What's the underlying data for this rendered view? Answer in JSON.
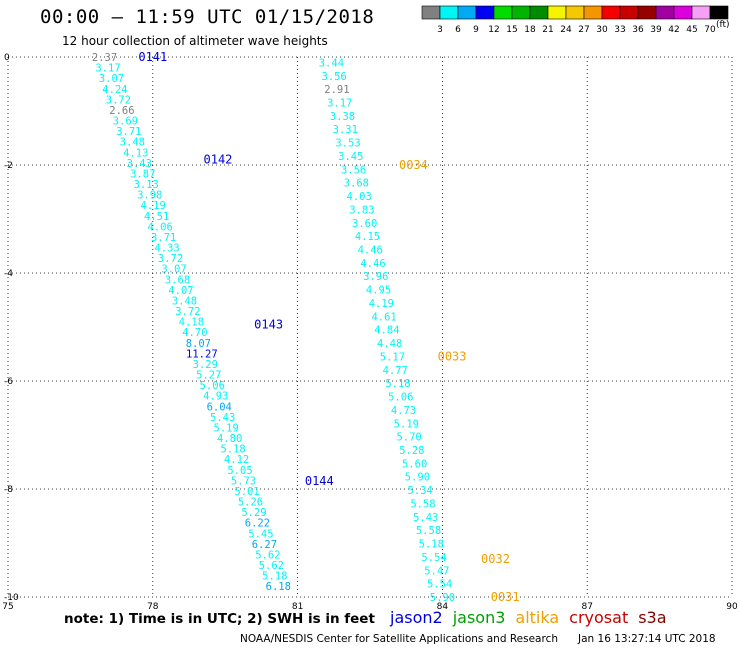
{
  "header": {
    "title": "00:00 – 11:59 UTC 01/15/2018",
    "subtitle": "12 hour collection of altimeter wave heights"
  },
  "colorbar": {
    "unit": "(ft)",
    "colors": [
      "#808080",
      "#00f5f5",
      "#00aaf5",
      "#0000f5",
      "#00dc00",
      "#00b400",
      "#008c00",
      "#f5f500",
      "#f5c800",
      "#f59600",
      "#f50000",
      "#c80000",
      "#960000",
      "#a000a0",
      "#dc00dc",
      "#f5a0f5",
      "#000000"
    ],
    "labels": [
      "3",
      "6",
      "9",
      "12",
      "15",
      "18",
      "21",
      "24",
      "27",
      "30",
      "33",
      "36",
      "39",
      "42",
      "45",
      "70"
    ]
  },
  "chart_data": {
    "type": "scatter",
    "xlim": [
      75,
      90
    ],
    "ylim": [
      -10,
      0
    ],
    "xticks": [
      "75",
      "78",
      "81",
      "84",
      "87",
      "90"
    ],
    "yticks": [
      "0",
      "-2",
      "-4",
      "-6",
      "-8",
      "-10"
    ],
    "grid": true,
    "tracks": [
      {
        "satellite": "jason2",
        "x_start": 77.0,
        "x_end": 80.6,
        "y_start": 0,
        "y_end": -9.8,
        "values": [
          "2.37",
          "3.17",
          "3.07",
          "4.24",
          "3.72",
          "2.66",
          "3.69",
          "3.71",
          "3.48",
          "4.13",
          "3.43",
          "3.87",
          "3.13",
          "3.98",
          "4.19",
          "4.51",
          "4.06",
          "3.71",
          "4.33",
          "3.72",
          "3.07",
          "3.68",
          "4.07",
          "3.48",
          "3.72",
          "4.18",
          "4.70",
          "8.07",
          "11.27",
          "3.29",
          "5.27",
          "5.06",
          "4.93",
          "6.04",
          "5.43",
          "5.19",
          "4.80",
          "5.18",
          "4.12",
          "5.05",
          "5.73",
          "5.01",
          "5.26",
          "5.29",
          "6.22",
          "5.45",
          "6.27",
          "5.62",
          "5.62",
          "5.18",
          "6.18"
        ],
        "time_labels": [
          {
            "text": "0141",
            "x": 78.0,
            "y": 0.0
          },
          {
            "text": "0142",
            "x": 79.35,
            "y": -1.9
          },
          {
            "text": "0143",
            "x": 80.4,
            "y": -4.95
          },
          {
            "text": "0144",
            "x": 81.45,
            "y": -7.85
          }
        ]
      },
      {
        "satellite": "altika",
        "x_start": 81.7,
        "x_end": 84.0,
        "y_start": -0.1,
        "y_end": -10.0,
        "values": [
          "3.44",
          "3.56",
          "2.91",
          "3.17",
          "3.38",
          "3.31",
          "3.53",
          "3.45",
          "3.56",
          "3.68",
          "4.03",
          "3.83",
          "3.60",
          "4.15",
          "4.46",
          "4.46",
          "3.96",
          "4.95",
          "4.19",
          "4.61",
          "4.84",
          "4.48",
          "5.17",
          "4.77",
          "5.18",
          "5.06",
          "4.73",
          "5.19",
          "5.70",
          "5.28",
          "5.60",
          "5.90",
          "5.34",
          "5.58",
          "5.43",
          "5.58",
          "5.18",
          "5.54",
          "5.47",
          "5.54",
          "5.90"
        ],
        "time_labels": [
          {
            "text": "0034",
            "x": 83.4,
            "y": -2.0
          },
          {
            "text": "0033",
            "x": 84.2,
            "y": -5.55
          },
          {
            "text": "0032",
            "x": 85.1,
            "y": -9.3
          },
          {
            "text": "0031",
            "x": 85.3,
            "y": -10.0
          }
        ]
      }
    ]
  },
  "footer": {
    "note": "note:  1) Time is in UTC;  2) SWH is in feet",
    "satellites": [
      {
        "name": "jason2",
        "color": "#0000dd"
      },
      {
        "name": "jason3",
        "color": "#00a000"
      },
      {
        "name": "altika",
        "color": "#f0a000"
      },
      {
        "name": "cryosat",
        "color": "#c80000"
      },
      {
        "name": "s3a",
        "color": "#800000"
      }
    ],
    "credit": "NOAA/NESDIS Center for Satellite Applications and Research",
    "timestamp": "Jan 16 13:27:14 UTC 2018"
  }
}
